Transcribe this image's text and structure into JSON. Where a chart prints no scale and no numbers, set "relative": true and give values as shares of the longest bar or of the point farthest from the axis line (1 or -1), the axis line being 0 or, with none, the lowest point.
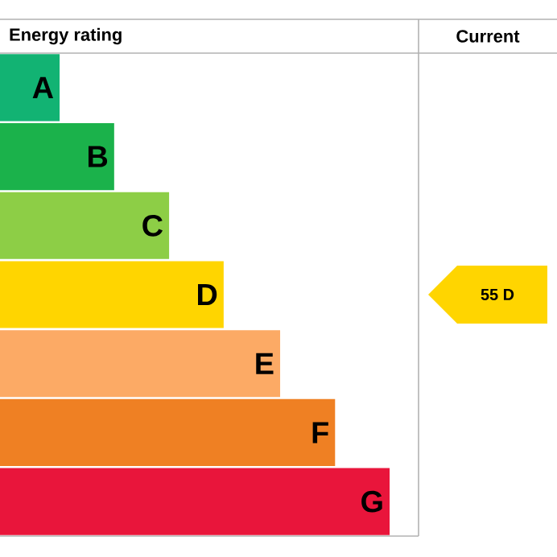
{
  "chart_data": {
    "type": "bar",
    "orientation": "horizontal",
    "relative": true,
    "title": "Energy rating",
    "categories": [
      "A",
      "B",
      "C",
      "D",
      "E",
      "F",
      "G"
    ],
    "values": [
      0.153,
      0.293,
      0.434,
      0.574,
      0.719,
      0.86,
      1
    ],
    "colors": [
      "#12b373",
      "#1bb24b",
      "#8dce46",
      "#ffd500",
      "#fcaa65",
      "#ef8023",
      "#e9153b"
    ],
    "annotations": [
      "Current",
      "55 D"
    ]
  }
}
